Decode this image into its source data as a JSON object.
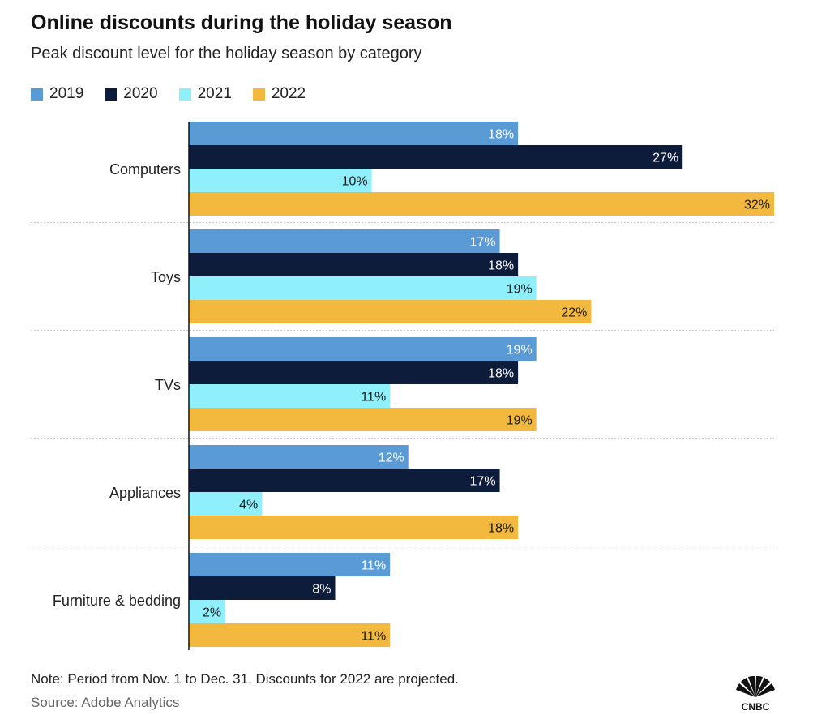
{
  "title": "Online discounts during the holiday season",
  "subtitle": "Peak discount level for the holiday season by category",
  "note": "Note: Period from Nov. 1 to Dec. 31. Discounts for 2022 are projected.",
  "source": "Source: Adobe Analytics",
  "logo": {
    "text": "CNBC",
    "icon": "cnbc-peacock-logo"
  },
  "colors": {
    "2019": "#5b9bd5",
    "2020": "#0c1c3a",
    "2021": "#8ff0fc",
    "2022": "#f2b93e"
  },
  "chart_data": {
    "type": "bar",
    "orientation": "horizontal",
    "categories": [
      "Computers",
      "Toys",
      "TVs",
      "Appliances",
      "Furniture & bedding"
    ],
    "series": [
      {
        "name": "2019",
        "values": [
          18,
          17,
          19,
          12,
          11
        ],
        "labels": [
          "18%",
          "17%",
          "19%",
          "12%",
          "11%"
        ]
      },
      {
        "name": "2020",
        "values": [
          27,
          18,
          18,
          17,
          8
        ],
        "labels": [
          "27%",
          "18%",
          "18%",
          "17%",
          "8%"
        ]
      },
      {
        "name": "2021",
        "values": [
          10,
          19,
          11,
          4,
          2
        ],
        "labels": [
          "10%",
          "19%",
          "11%",
          "4%",
          "2%"
        ]
      },
      {
        "name": "2022",
        "values": [
          32,
          22,
          19,
          18,
          11
        ],
        "labels": [
          "32%",
          "22%",
          "19%",
          "18%",
          "11%"
        ]
      }
    ],
    "xlim": [
      0,
      32
    ],
    "legend_position": "top-left",
    "grid": false,
    "group_separators": true
  }
}
